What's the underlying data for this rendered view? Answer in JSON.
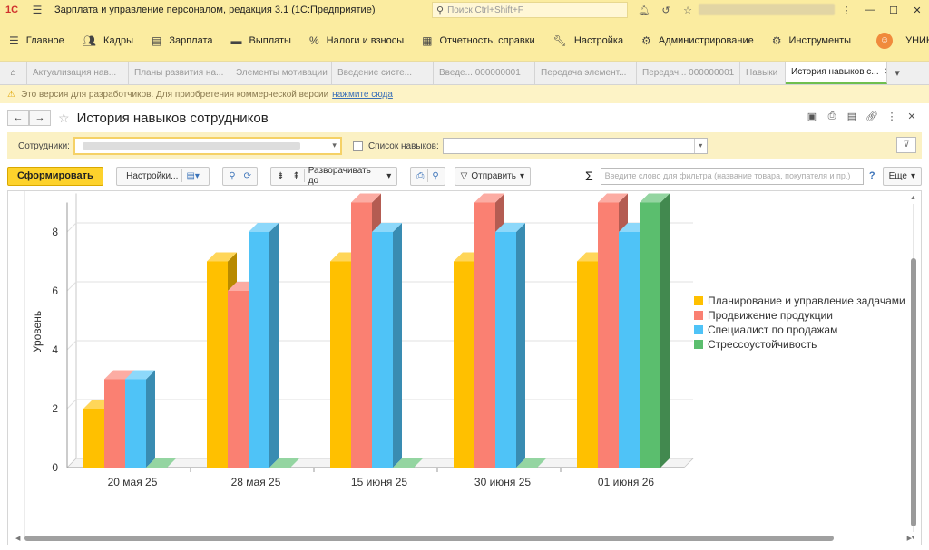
{
  "app": {
    "title": "Зарплата и управление персоналом, редакция 3.1  (1С:Предприятие)",
    "search_placeholder": "Поиск Ctrl+Shift+F"
  },
  "menu": [
    {
      "icon": "menu-icon",
      "label": "Главное"
    },
    {
      "icon": "people-icon",
      "label": "Кадры"
    },
    {
      "icon": "salary-icon",
      "label": "Зарплата"
    },
    {
      "icon": "payments-icon",
      "label": "Выплаты"
    },
    {
      "icon": "percent-icon",
      "label": "Налоги и взносы"
    },
    {
      "icon": "reports-icon",
      "label": "Отчетность, справки"
    },
    {
      "icon": "wrench-icon",
      "label": "Настройка"
    },
    {
      "icon": "gear-icon",
      "label": "Администрирование"
    },
    {
      "icon": "tools-icon",
      "label": "Инструменты"
    },
    {
      "icon": "unikr-icon",
      "label": "УНИКР"
    }
  ],
  "tabs": [
    {
      "label": "Актуализация нав..."
    },
    {
      "label": "Планы развития на..."
    },
    {
      "label": "Элементы мотивации"
    },
    {
      "label": "Введение систе..."
    },
    {
      "label": "Введе... 000000001"
    },
    {
      "label": "Передача элемент..."
    },
    {
      "label": "Передач... 000000001"
    },
    {
      "label": "Навыки"
    },
    {
      "label": "История навыков с...",
      "active": true
    }
  ],
  "notice": {
    "text": "Это версия для разработчиков. Для приобретения коммерческой версии",
    "link": "нажмите сюда"
  },
  "form": {
    "title": "История навыков сотрудников",
    "filter": {
      "employees_label": "Сотрудники:",
      "skills_label": "Список навыков:"
    }
  },
  "toolbar": {
    "generate": "Сформировать",
    "settings": "Настройки...",
    "expand": "Разворачивать до",
    "send": "Отправить",
    "search_placeholder": "Введите слово для фильтра (название товара, покупателя и пр.)",
    "help": "?",
    "more": "Еще"
  },
  "chart_data": {
    "type": "bar",
    "ylabel": "Уровень",
    "xlabel": "",
    "ylim": [
      0,
      9
    ],
    "yticks": [
      0,
      2,
      4,
      6,
      8
    ],
    "categories": [
      "20 мая 25",
      "28 мая 25",
      "15 июня 25",
      "30 июня 25",
      "01 июня 26"
    ],
    "series": [
      {
        "name": "Планирование и управление задачами",
        "color": "#FFC000",
        "values": [
          2,
          7,
          7,
          7,
          7
        ]
      },
      {
        "name": "Продвижение продукции",
        "color": "#FA8072",
        "values": [
          3,
          6,
          9,
          9,
          9
        ]
      },
      {
        "name": "Специалист по продажам",
        "color": "#4FC3F7",
        "values": [
          3,
          8,
          8,
          8,
          8
        ]
      },
      {
        "name": "Стрессоустойчивость",
        "color": "#5BBE6E",
        "values": [
          0,
          0,
          0,
          0,
          9
        ]
      }
    ],
    "legend_position": "right",
    "grid": true
  }
}
